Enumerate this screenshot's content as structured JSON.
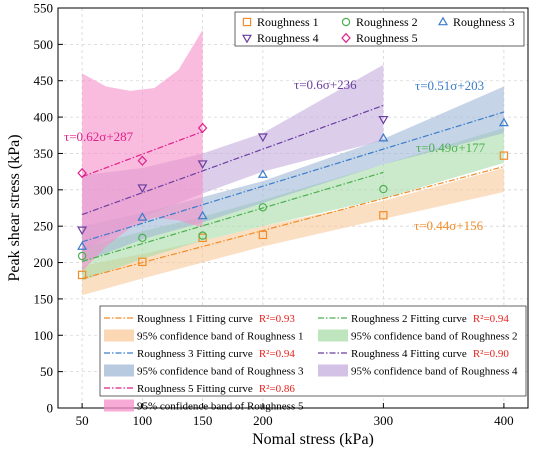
{
  "chart_data": {
    "type": "scatter",
    "title": "",
    "xlabel": "Nomal stress (kPa)",
    "ylabel": "Peak shear stress (kPa)",
    "xlim": [
      30,
      420
    ],
    "ylim": [
      0,
      550
    ],
    "xticks": [
      50,
      100,
      150,
      200,
      300,
      400
    ],
    "yticks": [
      0,
      50,
      100,
      150,
      200,
      250,
      300,
      350,
      400,
      450,
      500,
      550
    ],
    "grid": true,
    "legend_top": {
      "placement": "top-right"
    },
    "legend_bottom": {
      "placement": "bottom"
    },
    "series": [
      {
        "name": "Roughness 1",
        "marker": "square",
        "color": "#F28C28",
        "band_color": "#F9C99B",
        "x": [
          50,
          100,
          150,
          200,
          300,
          400
        ],
        "y": [
          183,
          201,
          234,
          238,
          265,
          347
        ],
        "fit_slope": 0.44,
        "fit_intercept": 156,
        "equation": "τ=0.44σ+156",
        "fit_label": "Roughness 1 Fitting curve",
        "r2": "R²=0.93",
        "band_label": "95% confidence band of Roughness 1",
        "band_upper": [
          [
            50,
            195
          ],
          [
            100,
            212
          ],
          [
            150,
            230
          ],
          [
            200,
            250
          ],
          [
            300,
            285
          ],
          [
            400,
            330
          ]
        ],
        "band_lower": [
          [
            50,
            155
          ],
          [
            100,
            178
          ],
          [
            150,
            200
          ],
          [
            200,
            222
          ],
          [
            300,
            260
          ],
          [
            400,
            297
          ]
        ]
      },
      {
        "name": "Roughness 2",
        "marker": "circle",
        "color": "#4CAF50",
        "band_color": "#A8DCA8",
        "x": [
          50,
          100,
          150,
          200,
          300
        ],
        "y": [
          209,
          234,
          237,
          276,
          301
        ],
        "fit_slope": 0.49,
        "fit_intercept": 177,
        "equation": "τ=0.49σ+177",
        "fit_label": "Roughness 2 Fitting curve",
        "r2": "R²=0.94",
        "band_label": "95% confidence band of Roughness 2",
        "band_upper": [
          [
            50,
            220
          ],
          [
            100,
            243
          ],
          [
            150,
            263
          ],
          [
            200,
            286
          ],
          [
            300,
            335
          ],
          [
            400,
            385
          ]
        ],
        "band_lower": [
          [
            50,
            175
          ],
          [
            100,
            205
          ],
          [
            150,
            230
          ],
          [
            200,
            250
          ],
          [
            300,
            288
          ],
          [
            400,
            337
          ]
        ]
      },
      {
        "name": "Roughness 3",
        "marker": "triangle-up",
        "color": "#3A7DC9",
        "band_color": "#9FB8D6",
        "x": [
          50,
          100,
          150,
          200,
          300,
          400
        ],
        "y": [
          222,
          262,
          264,
          321,
          371,
          392
        ],
        "fit_slope": 0.51,
        "fit_intercept": 203,
        "equation": "τ=0.51σ+203",
        "fit_label": "Roughness 3 Fitting curve",
        "r2": "R²=0.94",
        "band_label": "95% confidence band of Roughness 3",
        "band_upper": [
          [
            50,
            250
          ],
          [
            100,
            268
          ],
          [
            150,
            290
          ],
          [
            200,
            312
          ],
          [
            300,
            370
          ],
          [
            400,
            442
          ]
        ],
        "band_lower": [
          [
            50,
            200
          ],
          [
            100,
            232
          ],
          [
            150,
            255
          ],
          [
            200,
            282
          ],
          [
            300,
            335
          ],
          [
            400,
            378
          ]
        ]
      },
      {
        "name": "Roughness 4",
        "marker": "triangle-down",
        "color": "#6A3FA0",
        "band_color": "#C4AEDD",
        "x": [
          50,
          100,
          150,
          200,
          300
        ],
        "y": [
          245,
          303,
          336,
          373,
          397
        ],
        "fit_slope": 0.6,
        "fit_intercept": 236,
        "equation": "τ=0.6σ+236",
        "fit_label": "Roughness 4 Fitting curve",
        "r2": "R²=0.90",
        "band_label": "95% confidence band of Roughness 4",
        "band_upper": [
          [
            50,
            320
          ],
          [
            100,
            330
          ],
          [
            150,
            350
          ],
          [
            200,
            378
          ],
          [
            300,
            472
          ]
        ],
        "band_lower": [
          [
            50,
            215
          ],
          [
            100,
            262
          ],
          [
            150,
            295
          ],
          [
            200,
            325
          ],
          [
            300,
            368
          ]
        ]
      },
      {
        "name": "Roughness 5",
        "marker": "diamond",
        "color": "#E0218A",
        "band_color": "#F58FC8",
        "x": [
          50,
          100,
          150
        ],
        "y": [
          323,
          340,
          385
        ],
        "fit_slope": 0.62,
        "fit_intercept": 287,
        "equation": "τ=0.62σ+287",
        "fit_label": "Roughness 5 Fitting curve",
        "r2": "R²=0.86",
        "band_label": "95% confidence band of Roughness 5",
        "band_upper": [
          [
            50,
            460
          ],
          [
            70,
            442
          ],
          [
            90,
            436
          ],
          [
            110,
            440
          ],
          [
            130,
            465
          ],
          [
            150,
            520
          ]
        ],
        "band_lower": [
          [
            50,
            188
          ],
          [
            70,
            222
          ],
          [
            90,
            248
          ],
          [
            110,
            262
          ],
          [
            130,
            258
          ],
          [
            150,
            248
          ]
        ]
      }
    ]
  }
}
